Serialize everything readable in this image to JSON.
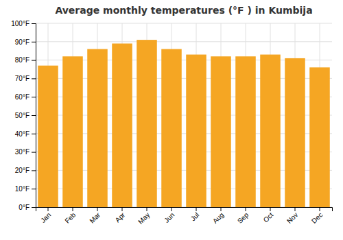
{
  "chart_data": {
    "type": "bar",
    "title": "Average monthly temperatures (°F ) in Kumbija",
    "categories": [
      "Jan",
      "Feb",
      "Mar",
      "Apr",
      "May",
      "Jun",
      "Jul",
      "Aug",
      "Sep",
      "Oct",
      "Nov",
      "Dec"
    ],
    "values": [
      77,
      82,
      86,
      89,
      91,
      86,
      83,
      82,
      82,
      83,
      81,
      76
    ],
    "color": "#F5A623",
    "ylim": [
      0,
      100
    ],
    "yticks": [
      {
        "value": 0,
        "label": "0°F"
      },
      {
        "value": 10,
        "label": "10°F"
      },
      {
        "value": 20,
        "label": "20°F"
      },
      {
        "value": 30,
        "label": "30°F"
      },
      {
        "value": 40,
        "label": "40°F"
      },
      {
        "value": 50,
        "label": "50°F"
      },
      {
        "value": 60,
        "label": "60°F"
      },
      {
        "value": 70,
        "label": "70°F"
      },
      {
        "value": 80,
        "label": "80°F"
      },
      {
        "value": 90,
        "label": "90°F"
      },
      {
        "value": 100,
        "label": "100°F"
      }
    ],
    "grid": true
  }
}
